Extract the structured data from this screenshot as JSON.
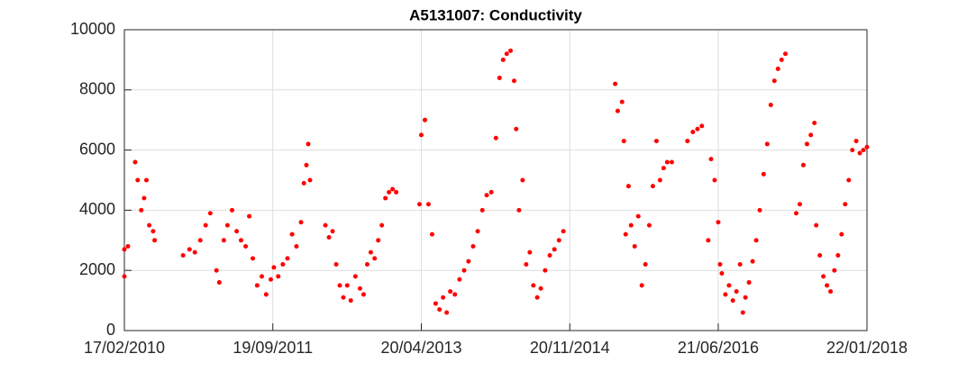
{
  "chart_data": {
    "type": "scatter",
    "title": "A5131007: Conductivity",
    "color": "#ff0000",
    "grid": true,
    "xlim": [
      "17/02/2010",
      "22/01/2018"
    ],
    "xticks": [
      "17/02/2010",
      "19/09/2011",
      "20/04/2013",
      "20/11/2014",
      "21/06/2016",
      "22/01/2018"
    ],
    "ylim": [
      0,
      10000
    ],
    "yticks": [
      0,
      2000,
      4000,
      6000,
      8000,
      10000
    ],
    "x": [
      "17/02/2010",
      "17/02/2010",
      "03/03/2010",
      "31/03/2010",
      "10/04/2010",
      "24/04/2010",
      "05/05/2010",
      "14/05/2010",
      "25/05/2010",
      "09/06/2010",
      "15/06/2010",
      "04/10/2010",
      "29/10/2010",
      "19/11/2010",
      "10/12/2010",
      "31/12/2010",
      "18/01/2011",
      "11/02/2011",
      "22/02/2011",
      "12/03/2011",
      "26/03/2011",
      "13/04/2011",
      "01/05/2011",
      "18/05/2011",
      "05/06/2011",
      "19/06/2011",
      "03/07/2011",
      "20/07/2011",
      "07/08/2011",
      "24/08/2011",
      "11/09/2011",
      "23/09/2011",
      "10/10/2011",
      "28/10/2011",
      "15/11/2011",
      "03/12/2011",
      "20/12/2011",
      "07/01/2012",
      "18/01/2012",
      "28/01/2012",
      "04/02/2012",
      "11/02/2012",
      "11/04/2012",
      "25/04/2012",
      "09/05/2012",
      "23/05/2012",
      "06/06/2012",
      "20/06/2012",
      "05/07/2012",
      "19/07/2012",
      "06/08/2012",
      "24/08/2012",
      "07/09/2012",
      "21/09/2012",
      "05/10/2012",
      "20/10/2012",
      "03/11/2012",
      "17/11/2012",
      "01/12/2012",
      "15/12/2012",
      "29/12/2012",
      "12/01/2013",
      "13/04/2013",
      "20/04/2013",
      "04/05/2013",
      "18/05/2013",
      "01/06/2013",
      "15/06/2013",
      "30/06/2013",
      "14/07/2013",
      "28/07/2013",
      "11/08/2013",
      "29/08/2013",
      "16/09/2013",
      "04/10/2013",
      "21/10/2013",
      "08/11/2013",
      "26/11/2013",
      "14/12/2013",
      "31/12/2013",
      "18/01/2014",
      "05/02/2014",
      "19/02/2014",
      "05/03/2014",
      "19/03/2014",
      "03/04/2014",
      "17/04/2014",
      "25/04/2014",
      "06/05/2014",
      "20/05/2014",
      "03/06/2014",
      "17/06/2014",
      "01/07/2014",
      "16/07/2014",
      "30/07/2014",
      "16/08/2014",
      "03/09/2014",
      "21/09/2014",
      "09/10/2014",
      "26/10/2014",
      "16/05/2015",
      "26/05/2015",
      "12/06/2015",
      "19/06/2015",
      "26/06/2015",
      "07/07/2015",
      "17/07/2015",
      "31/07/2015",
      "14/08/2015",
      "28/08/2015",
      "11/09/2015",
      "26/09/2015",
      "10/10/2015",
      "24/10/2015",
      "07/11/2015",
      "21/11/2015",
      "05/12/2015",
      "23/12/2015",
      "22/02/2016",
      "14/03/2016",
      "01/04/2016",
      "18/04/2016",
      "13/05/2016",
      "24/05/2016",
      "07/06/2016",
      "21/06/2016",
      "28/06/2016",
      "05/07/2016",
      "19/07/2016",
      "02/08/2016",
      "17/08/2016",
      "31/08/2016",
      "14/09/2016",
      "25/09/2016",
      "05/10/2016",
      "19/10/2016",
      "02/11/2016",
      "16/11/2016",
      "30/11/2016",
      "15/12/2016",
      "29/12/2016",
      "12/01/2017",
      "26/01/2017",
      "09/02/2017",
      "23/02/2017",
      "10/03/2017",
      "21/04/2017",
      "05/05/2017",
      "19/05/2017",
      "02/06/2017",
      "17/06/2017",
      "01/07/2017",
      "08/07/2017",
      "22/07/2017",
      "05/08/2017",
      "19/08/2017",
      "02/09/2017",
      "17/09/2017",
      "01/10/2017",
      "15/10/2017",
      "29/10/2017",
      "12/11/2017",
      "26/11/2017",
      "11/12/2017",
      "25/12/2017",
      "08/01/2018",
      "22/01/2018"
    ],
    "values": [
      1800,
      2700,
      2800,
      5600,
      5000,
      4000,
      4400,
      5000,
      3500,
      3300,
      3000,
      2500,
      2700,
      2600,
      3000,
      3500,
      3900,
      2000,
      1600,
      3000,
      3500,
      4000,
      3300,
      3000,
      2800,
      3800,
      2400,
      1500,
      1800,
      1200,
      1700,
      2100,
      1800,
      2200,
      2400,
      3200,
      2800,
      3600,
      4900,
      5500,
      6200,
      5000,
      3500,
      3100,
      3300,
      2200,
      1500,
      1100,
      1500,
      1000,
      1800,
      1400,
      1200,
      2200,
      2600,
      2400,
      3000,
      3500,
      4400,
      4600,
      4700,
      4600,
      4200,
      6500,
      7000,
      4200,
      3200,
      900,
      700,
      1100,
      600,
      1300,
      1200,
      1700,
      2000,
      2300,
      2800,
      3300,
      4000,
      4500,
      4600,
      6400,
      8400,
      9000,
      9200,
      9300,
      8300,
      6700,
      4000,
      5000,
      2200,
      2600,
      1500,
      1100,
      1400,
      2000,
      2500,
      2700,
      3000,
      3300,
      8200,
      7300,
      7600,
      6300,
      3200,
      4800,
      3500,
      2800,
      3800,
      1500,
      2200,
      3500,
      4800,
      6300,
      5000,
      5400,
      5600,
      5600,
      6300,
      6600,
      6700,
      6800,
      3000,
      5700,
      5000,
      3600,
      2200,
      1900,
      1200,
      1500,
      1000,
      1300,
      2200,
      600,
      1100,
      1600,
      2300,
      3000,
      4000,
      5200,
      6200,
      7500,
      8300,
      8700,
      9000,
      9200,
      3900,
      4200,
      5500,
      6200,
      6500,
      6900,
      3500,
      2500,
      1800,
      1500,
      1300,
      2000,
      2500,
      3200,
      4200,
      5000,
      6000,
      6300,
      5900,
      6000,
      6100
    ]
  }
}
